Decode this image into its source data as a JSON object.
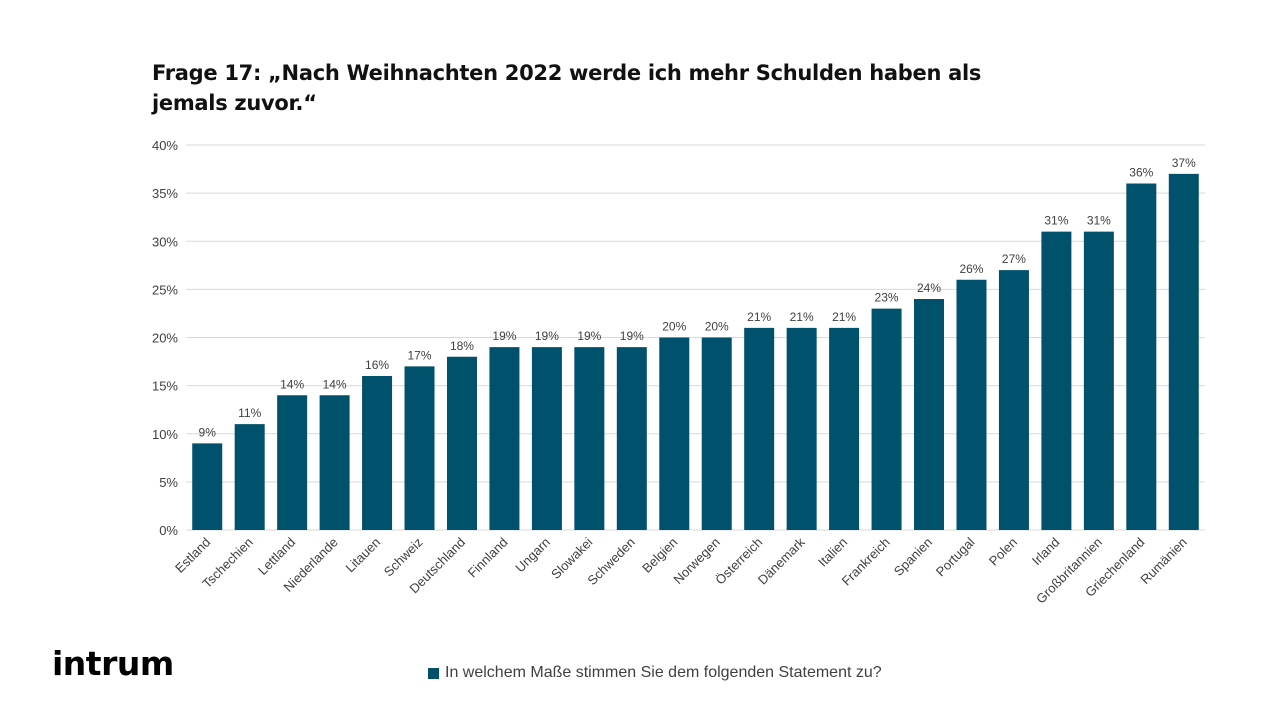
{
  "title": "Frage 17: „Nach Weihnachten 2022  werde ich mehr Schulden haben als jemals zuvor.“",
  "logo_text": "intrum",
  "colors": {
    "bar": "#00516b",
    "grid": "#d9d9d9",
    "text": "#404040"
  },
  "chart_data": {
    "type": "bar",
    "title": "Frage 17: „Nach Weihnachten 2022  werde ich mehr Schulden haben als jemals zuvor.“",
    "xlabel": "",
    "ylabel": "",
    "ylim": [
      0,
      40
    ],
    "yticks": [
      0,
      5,
      10,
      15,
      20,
      25,
      30,
      35,
      40
    ],
    "ytick_labels": [
      "0%",
      "5%",
      "10%",
      "15%",
      "20%",
      "25%",
      "30%",
      "35%",
      "40%"
    ],
    "grid": true,
    "legend_position": "bottom",
    "categories": [
      "Estland",
      "Tschechien",
      "Lettland",
      "Niederlande",
      "Litauen",
      "Schweiz",
      "Deutschland",
      "Finnland",
      "Ungarn",
      "Slowakei",
      "Schweden",
      "Belgien",
      "Norwegen",
      "Österreich",
      "Dänemark",
      "Italien",
      "Frankreich",
      "Spanien",
      "Portugal",
      "Polen",
      "Irland",
      "Großbritannien",
      "Griechenland",
      "Rumänien"
    ],
    "series": [
      {
        "name": "In welchem Maße stimmen Sie dem folgenden Statement zu?",
        "values": [
          9,
          11,
          14,
          14,
          16,
          17,
          18,
          19,
          19,
          19,
          19,
          20,
          20,
          21,
          21,
          21,
          23,
          24,
          26,
          27,
          31,
          31,
          36,
          37
        ],
        "labels": [
          "9%",
          "11%",
          "14%",
          "14%",
          "16%",
          "17%",
          "18%",
          "19%",
          "19%",
          "19%",
          "19%",
          "20%",
          "20%",
          "21%",
          "21%",
          "21%",
          "23%",
          "24%",
          "26%",
          "27%",
          "31%",
          "31%",
          "36%",
          "37%"
        ]
      }
    ]
  }
}
